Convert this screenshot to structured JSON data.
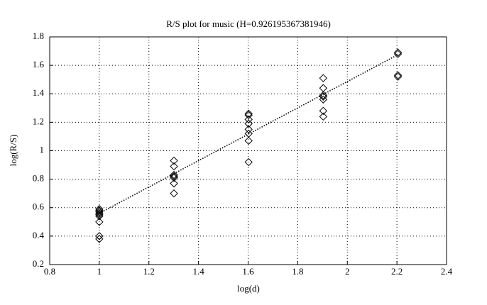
{
  "chart_data": {
    "type": "scatter",
    "title": "R/S plot for music (H=0.926195367381946)",
    "x_label": "log(d)",
    "y_label": "log(R/S)",
    "xlim": [
      0.8,
      2.4
    ],
    "xticks": [
      0.8,
      1,
      1.2,
      1.4,
      1.6,
      1.8,
      2,
      2.2,
      2.4
    ],
    "ylim": [
      0.2,
      1.8
    ],
    "yticks": [
      0.2,
      0.4,
      0.6,
      0.8,
      1,
      1.2,
      1.4,
      1.6,
      1.8
    ],
    "grid": true,
    "series": [
      {
        "mode": "markers",
        "color": "#000000",
        "x": [
          1,
          1,
          1,
          1,
          1,
          1,
          1,
          1,
          1,
          1.301,
          1.301,
          1.301,
          1.301,
          1.301,
          1.301,
          1.301,
          1.602,
          1.602,
          1.602,
          1.602,
          1.602,
          1.602,
          1.602,
          1.602,
          1.903,
          1.903,
          1.903,
          1.903,
          1.903,
          1.903,
          1.903,
          2.204,
          2.204,
          2.204,
          2.204
        ],
        "values": [
          0.59,
          0.58,
          0.57,
          0.56,
          0.55,
          0.54,
          0.5,
          0.4,
          0.38,
          0.93,
          0.89,
          0.83,
          0.82,
          0.81,
          0.77,
          0.7,
          1.26,
          1.25,
          1.22,
          1.19,
          1.15,
          1.12,
          1.07,
          0.92,
          1.51,
          1.44,
          1.39,
          1.38,
          1.36,
          1.28,
          1.24,
          1.69,
          1.68,
          1.53,
          1.52
        ]
      },
      {
        "mode": "line",
        "color": "#000000",
        "x": [
          1,
          2.204
        ],
        "values": [
          0.56,
          1.675
        ]
      }
    ]
  }
}
